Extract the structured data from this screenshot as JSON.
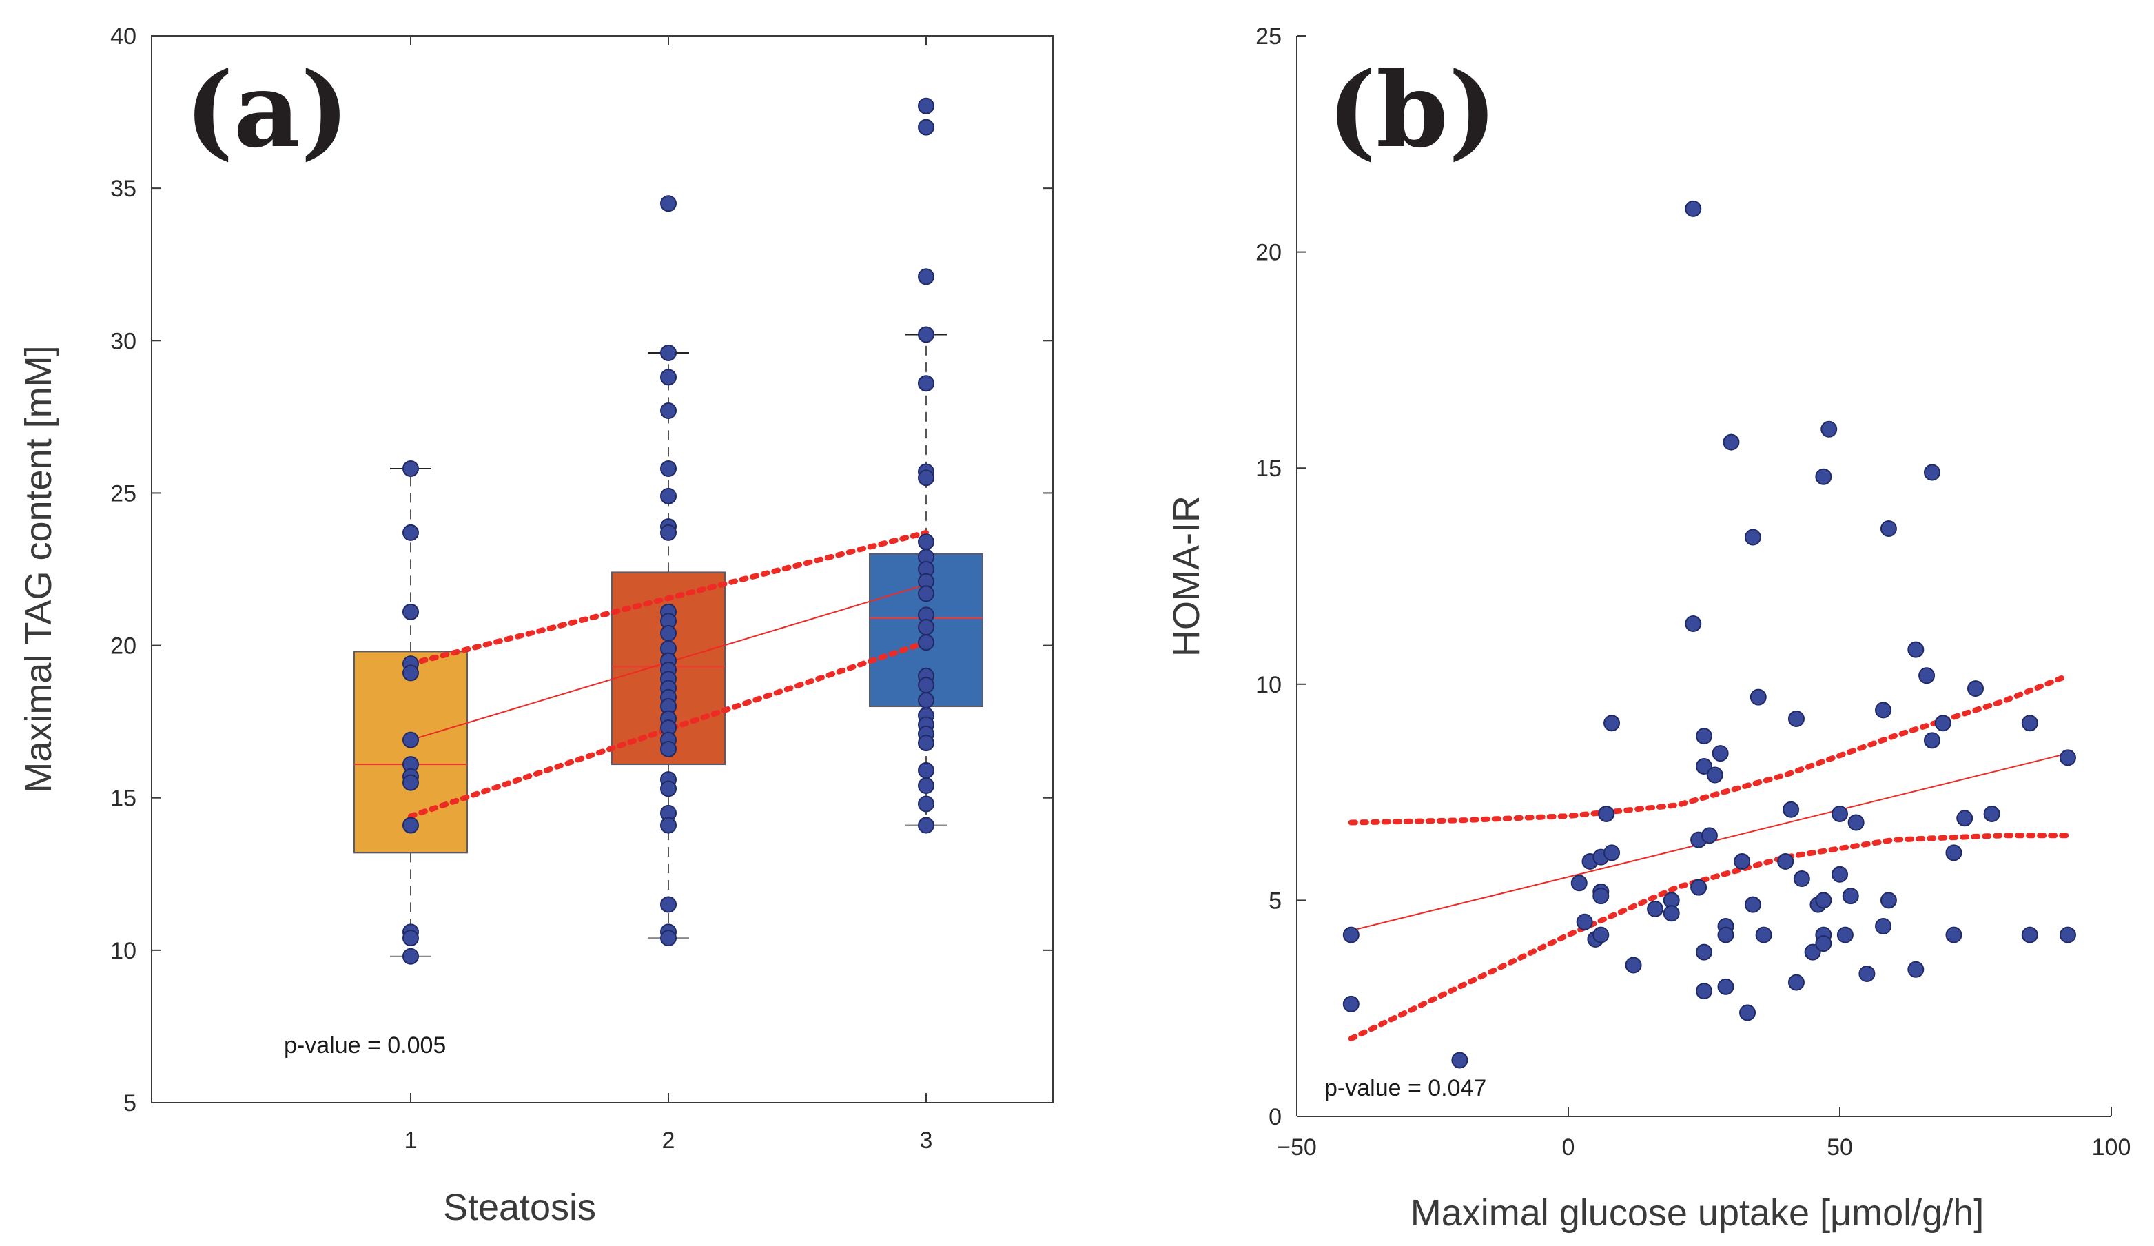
{
  "chart_data": [
    {
      "type": "box",
      "panel_label": "(a)",
      "xlabel": "Steatosis",
      "ylabel": "Maximal TAG content [mM]",
      "ylim": [
        5,
        40
      ],
      "yticks": [
        "5",
        "10",
        "15",
        "20",
        "25",
        "30",
        "35",
        "40"
      ],
      "xticks": [
        "1",
        "2",
        "3"
      ],
      "annotation": "p-value = 0.005",
      "colors": {
        "box_1": "#e8a63a",
        "box_2": "#d2572a",
        "box_3": "#3a6db0",
        "point": "#3a4a9a",
        "fit": "#ee2a24",
        "ci": "#ee2a24",
        "median": "#ee3a30"
      },
      "boxes": [
        {
          "category": 1,
          "q1": 13.2,
          "median": 16.1,
          "q3": 19.8,
          "whisker_low": 9.8,
          "whisker_high": 25.8,
          "points": [
            25.8,
            23.7,
            21.1,
            19.4,
            19.1,
            16.9,
            16.1,
            15.7,
            15.5,
            14.1,
            10.6,
            10.4,
            9.8
          ]
        },
        {
          "category": 2,
          "q1": 16.1,
          "median": 19.3,
          "q3": 22.4,
          "whisker_low": 10.4,
          "whisker_high": 29.6,
          "points": [
            34.5,
            29.6,
            28.8,
            27.7,
            25.8,
            24.9,
            23.9,
            23.7,
            21.1,
            20.8,
            20.4,
            19.9,
            19.5,
            19.2,
            18.9,
            18.6,
            18.3,
            18.0,
            17.6,
            17.3,
            16.9,
            16.6,
            15.6,
            15.3,
            14.5,
            14.1,
            11.5,
            10.6,
            10.4
          ]
        },
        {
          "category": 3,
          "q1": 18.0,
          "median": 20.9,
          "q3": 23.0,
          "whisker_low": 14.1,
          "whisker_high": 30.2,
          "points": [
            37.7,
            37.0,
            32.1,
            30.2,
            28.6,
            25.7,
            25.5,
            23.4,
            22.9,
            22.5,
            22.1,
            21.7,
            21.0,
            20.6,
            20.1,
            19.0,
            18.7,
            18.2,
            17.7,
            17.4,
            17.1,
            16.8,
            15.9,
            15.4,
            14.8,
            14.1
          ]
        }
      ],
      "fit_line": {
        "x": [
          1,
          3
        ],
        "y": [
          16.9,
          22.0
        ]
      },
      "ci_upper": {
        "x": [
          1,
          3
        ],
        "y": [
          19.4,
          23.7
        ]
      },
      "ci_lower": {
        "x": [
          1,
          3
        ],
        "y": [
          14.4,
          20.1
        ]
      }
    },
    {
      "type": "scatter",
      "panel_label": "(b)",
      "xlabel": "Maximal glucose uptake [μmol/g/h]",
      "ylabel": "HOMA-IR",
      "xlim": [
        -50,
        100
      ],
      "ylim": [
        0,
        25
      ],
      "xticks": [
        "−50",
        "0",
        "50",
        "100"
      ],
      "yticks": [
        "0",
        "5",
        "10",
        "15",
        "20",
        "25"
      ],
      "annotation": "p-value = 0.047",
      "colors": {
        "point": "#3a4a9a",
        "fit": "#ee2a24",
        "ci": "#ee2a24"
      },
      "points": [
        [
          -40,
          4.2
        ],
        [
          -40,
          2.6
        ],
        [
          -20,
          1.3
        ],
        [
          2,
          5.4
        ],
        [
          3,
          4.5
        ],
        [
          4,
          5.9
        ],
        [
          5,
          4.1
        ],
        [
          6,
          4.2
        ],
        [
          6,
          6.0
        ],
        [
          6,
          5.2
        ],
        [
          6,
          5.1
        ],
        [
          7,
          7.0
        ],
        [
          8,
          6.1
        ],
        [
          8,
          9.1
        ],
        [
          12,
          3.5
        ],
        [
          16,
          4.8
        ],
        [
          19,
          5.0
        ],
        [
          19,
          4.7
        ],
        [
          23,
          21.0
        ],
        [
          23,
          11.4
        ],
        [
          24,
          6.4
        ],
        [
          24,
          5.3
        ],
        [
          25,
          3.8
        ],
        [
          25,
          8.8
        ],
        [
          25,
          8.1
        ],
        [
          25,
          2.9
        ],
        [
          26,
          6.5
        ],
        [
          27,
          7.9
        ],
        [
          28,
          8.4
        ],
        [
          29,
          4.4
        ],
        [
          29,
          3.0
        ],
        [
          29,
          4.2
        ],
        [
          30,
          15.6
        ],
        [
          32,
          5.9
        ],
        [
          33,
          2.4
        ],
        [
          34,
          13.4
        ],
        [
          34,
          4.9
        ],
        [
          35,
          9.7
        ],
        [
          36,
          4.2
        ],
        [
          40,
          5.9
        ],
        [
          41,
          7.1
        ],
        [
          42,
          9.2
        ],
        [
          42,
          3.1
        ],
        [
          43,
          5.5
        ],
        [
          45,
          3.8
        ],
        [
          46,
          4.9
        ],
        [
          47,
          4.2
        ],
        [
          47,
          4.0
        ],
        [
          47,
          5.0
        ],
        [
          47,
          14.8
        ],
        [
          48,
          15.9
        ],
        [
          50,
          5.6
        ],
        [
          50,
          7.0
        ],
        [
          51,
          4.2
        ],
        [
          52,
          5.1
        ],
        [
          53,
          6.8
        ],
        [
          55,
          3.3
        ],
        [
          58,
          9.4
        ],
        [
          58,
          4.4
        ],
        [
          59,
          13.6
        ],
        [
          59,
          5.0
        ],
        [
          64,
          10.8
        ],
        [
          64,
          3.4
        ],
        [
          66,
          10.2
        ],
        [
          67,
          14.9
        ],
        [
          67,
          8.7
        ],
        [
          69,
          9.1
        ],
        [
          71,
          6.1
        ],
        [
          71,
          4.2
        ],
        [
          73,
          6.9
        ],
        [
          75,
          9.9
        ],
        [
          78,
          7.0
        ],
        [
          85,
          9.1
        ],
        [
          85,
          4.2
        ],
        [
          92,
          8.3
        ],
        [
          92,
          4.2
        ]
      ],
      "fit_line": {
        "x": [
          -40,
          92
        ],
        "y": [
          4.3,
          8.4
        ]
      },
      "ci_upper": {
        "x": [
          -40,
          -20,
          0,
          20,
          40,
          60,
          80,
          92
        ],
        "y": [
          6.8,
          6.85,
          6.95,
          7.2,
          7.9,
          8.8,
          9.6,
          10.2
        ]
      },
      "ci_lower": {
        "x": [
          -40,
          -20,
          0,
          20,
          40,
          60,
          80,
          92
        ],
        "y": [
          1.8,
          3.0,
          4.2,
          5.3,
          6.0,
          6.4,
          6.5,
          6.5
        ]
      }
    }
  ]
}
